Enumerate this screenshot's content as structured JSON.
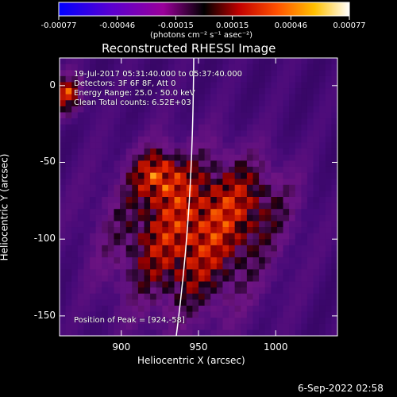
{
  "chart_data": {
    "type": "heatmap",
    "title": "Reconstructed RHESSI Image",
    "xlabel": "Heliocentric X (arcsec)",
    "ylabel": "Heliocentric Y (arcsec)",
    "xlim": [
      860,
      1040
    ],
    "ylim": [
      -163,
      18
    ],
    "x_ticks": [
      900,
      950,
      1000
    ],
    "y_ticks": [
      0,
      -50,
      -100,
      -150
    ],
    "colorbar": {
      "tick_labels": [
        "-0.00077",
        "-0.00046",
        "-0.00015",
        "0.00015",
        "0.00046",
        "0.00077"
      ],
      "tick_values": [
        -0.00077,
        -0.00046,
        -0.00015,
        0.00015,
        0.00046,
        0.00077
      ],
      "range": [
        -0.00077,
        0.00077
      ],
      "units": "(photons cm⁻² s⁻¹ asec⁻²)",
      "colormap": "rainbow-to-hot"
    },
    "annotations": {
      "time": "19-Jul-2017 05:31:40.000 to 05:37:40.000",
      "detectors": "Detectors: 3F 6F 8F, Att 0",
      "energy": "Energy Range: 25.0 - 50.0 keV",
      "clean": "Clean    Total counts: 6.52E+03",
      "peak": "Position of Peak = [924,-58]"
    },
    "peak": {
      "x": 924,
      "y": -58
    },
    "timestamp": "6-Sep-2022 02:58"
  }
}
